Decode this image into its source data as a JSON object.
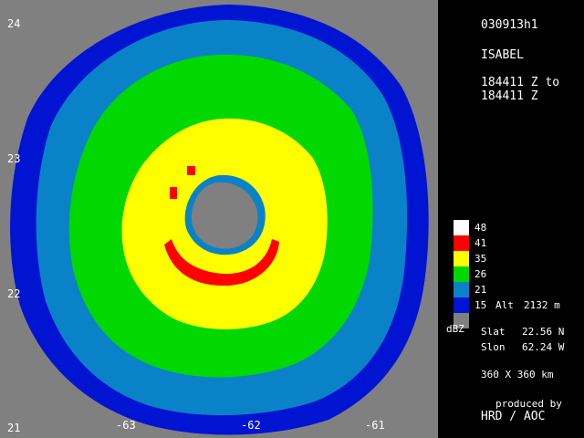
{
  "panel": {
    "date_code": "030913h1",
    "storm_name": "ISABEL",
    "time_from": "184411 Z to",
    "time_to": "184411 Z",
    "alt_label": "Alt",
    "alt_value": "2132 m",
    "units": "dBZ",
    "slat_label": "Slat",
    "slat_value": "22.56 N",
    "slon_label": "Slon",
    "slon_value": "62.24 W",
    "domain_size": "360 X 360 km",
    "produced_by": "produced by",
    "producer": "HRD / AOC"
  },
  "legend": [
    {
      "label": "48",
      "color": "#ffffff"
    },
    {
      "label": "41",
      "color": "#ff0000"
    },
    {
      "label": "35",
      "color": "#ffff00"
    },
    {
      "label": "26",
      "color": "#00d800"
    },
    {
      "label": "21",
      "color": "#0a82c8"
    },
    {
      "label": "15",
      "color": "#0014d2"
    },
    {
      "label": "",
      "color": "#808080"
    }
  ],
  "axes": {
    "lat_ticks": [
      "24",
      "23",
      "22",
      "21"
    ],
    "lon_ticks": [
      "-63",
      "-62",
      "-61"
    ]
  },
  "colors": {
    "background": "#808080",
    "dbz15": "#0014d2",
    "dbz21": "#0a82c8",
    "dbz26": "#00d800",
    "dbz35": "#ffff00",
    "dbz41": "#ff0000"
  }
}
